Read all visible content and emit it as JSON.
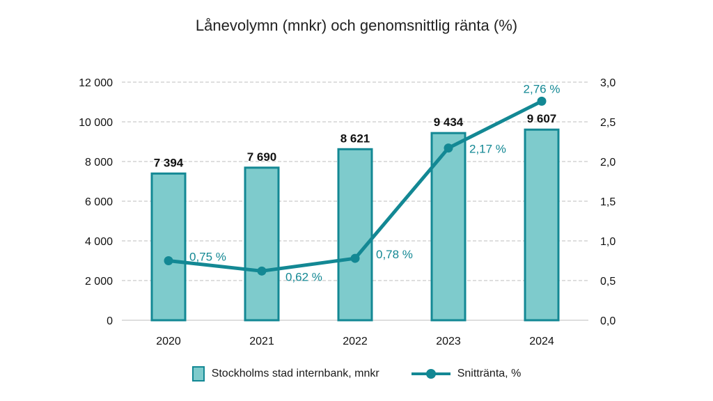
{
  "chart_data": {
    "type": "bar",
    "title": "Lånevolymn (mnkr) och genomsnittlig ränta (%)",
    "categories": [
      "2020",
      "2021",
      "2022",
      "2023",
      "2024"
    ],
    "series": [
      {
        "name": "Stockholms stad internbank, mnkr",
        "type": "bar",
        "axis": "left",
        "values": [
          7394,
          7690,
          8621,
          9434,
          9607
        ],
        "labels": [
          "7 394",
          "7 690",
          "8 621",
          "9 434",
          "9 607"
        ]
      },
      {
        "name": "Snittränta, %",
        "type": "line",
        "axis": "right",
        "values": [
          0.75,
          0.62,
          0.78,
          2.17,
          2.76
        ],
        "labels": [
          "0,75 %",
          "0,62 %",
          "0,78 %",
          "2,17 %",
          "2,76 %"
        ]
      }
    ],
    "y_left": {
      "ylim": [
        0,
        12000
      ],
      "ticks": [
        0,
        2000,
        4000,
        6000,
        8000,
        10000,
        12000
      ],
      "tick_labels": [
        "0",
        "2 000",
        "4 000",
        "6 000",
        "8 000",
        "10 000",
        "12 000"
      ]
    },
    "y_right": {
      "ylim": [
        0,
        3.0
      ],
      "ticks": [
        0,
        0.5,
        1.0,
        1.5,
        2.0,
        2.5,
        3.0
      ],
      "tick_labels": [
        "0,0",
        "0,5",
        "1,0",
        "1,5",
        "2,0",
        "2,5",
        "3,0"
      ]
    },
    "grid": true,
    "legend_position": "bottom",
    "colors": {
      "bar_fill": "#7ecbcc",
      "bar_stroke": "#138894",
      "line": "#138894",
      "grid": "#bdbdbd"
    }
  }
}
